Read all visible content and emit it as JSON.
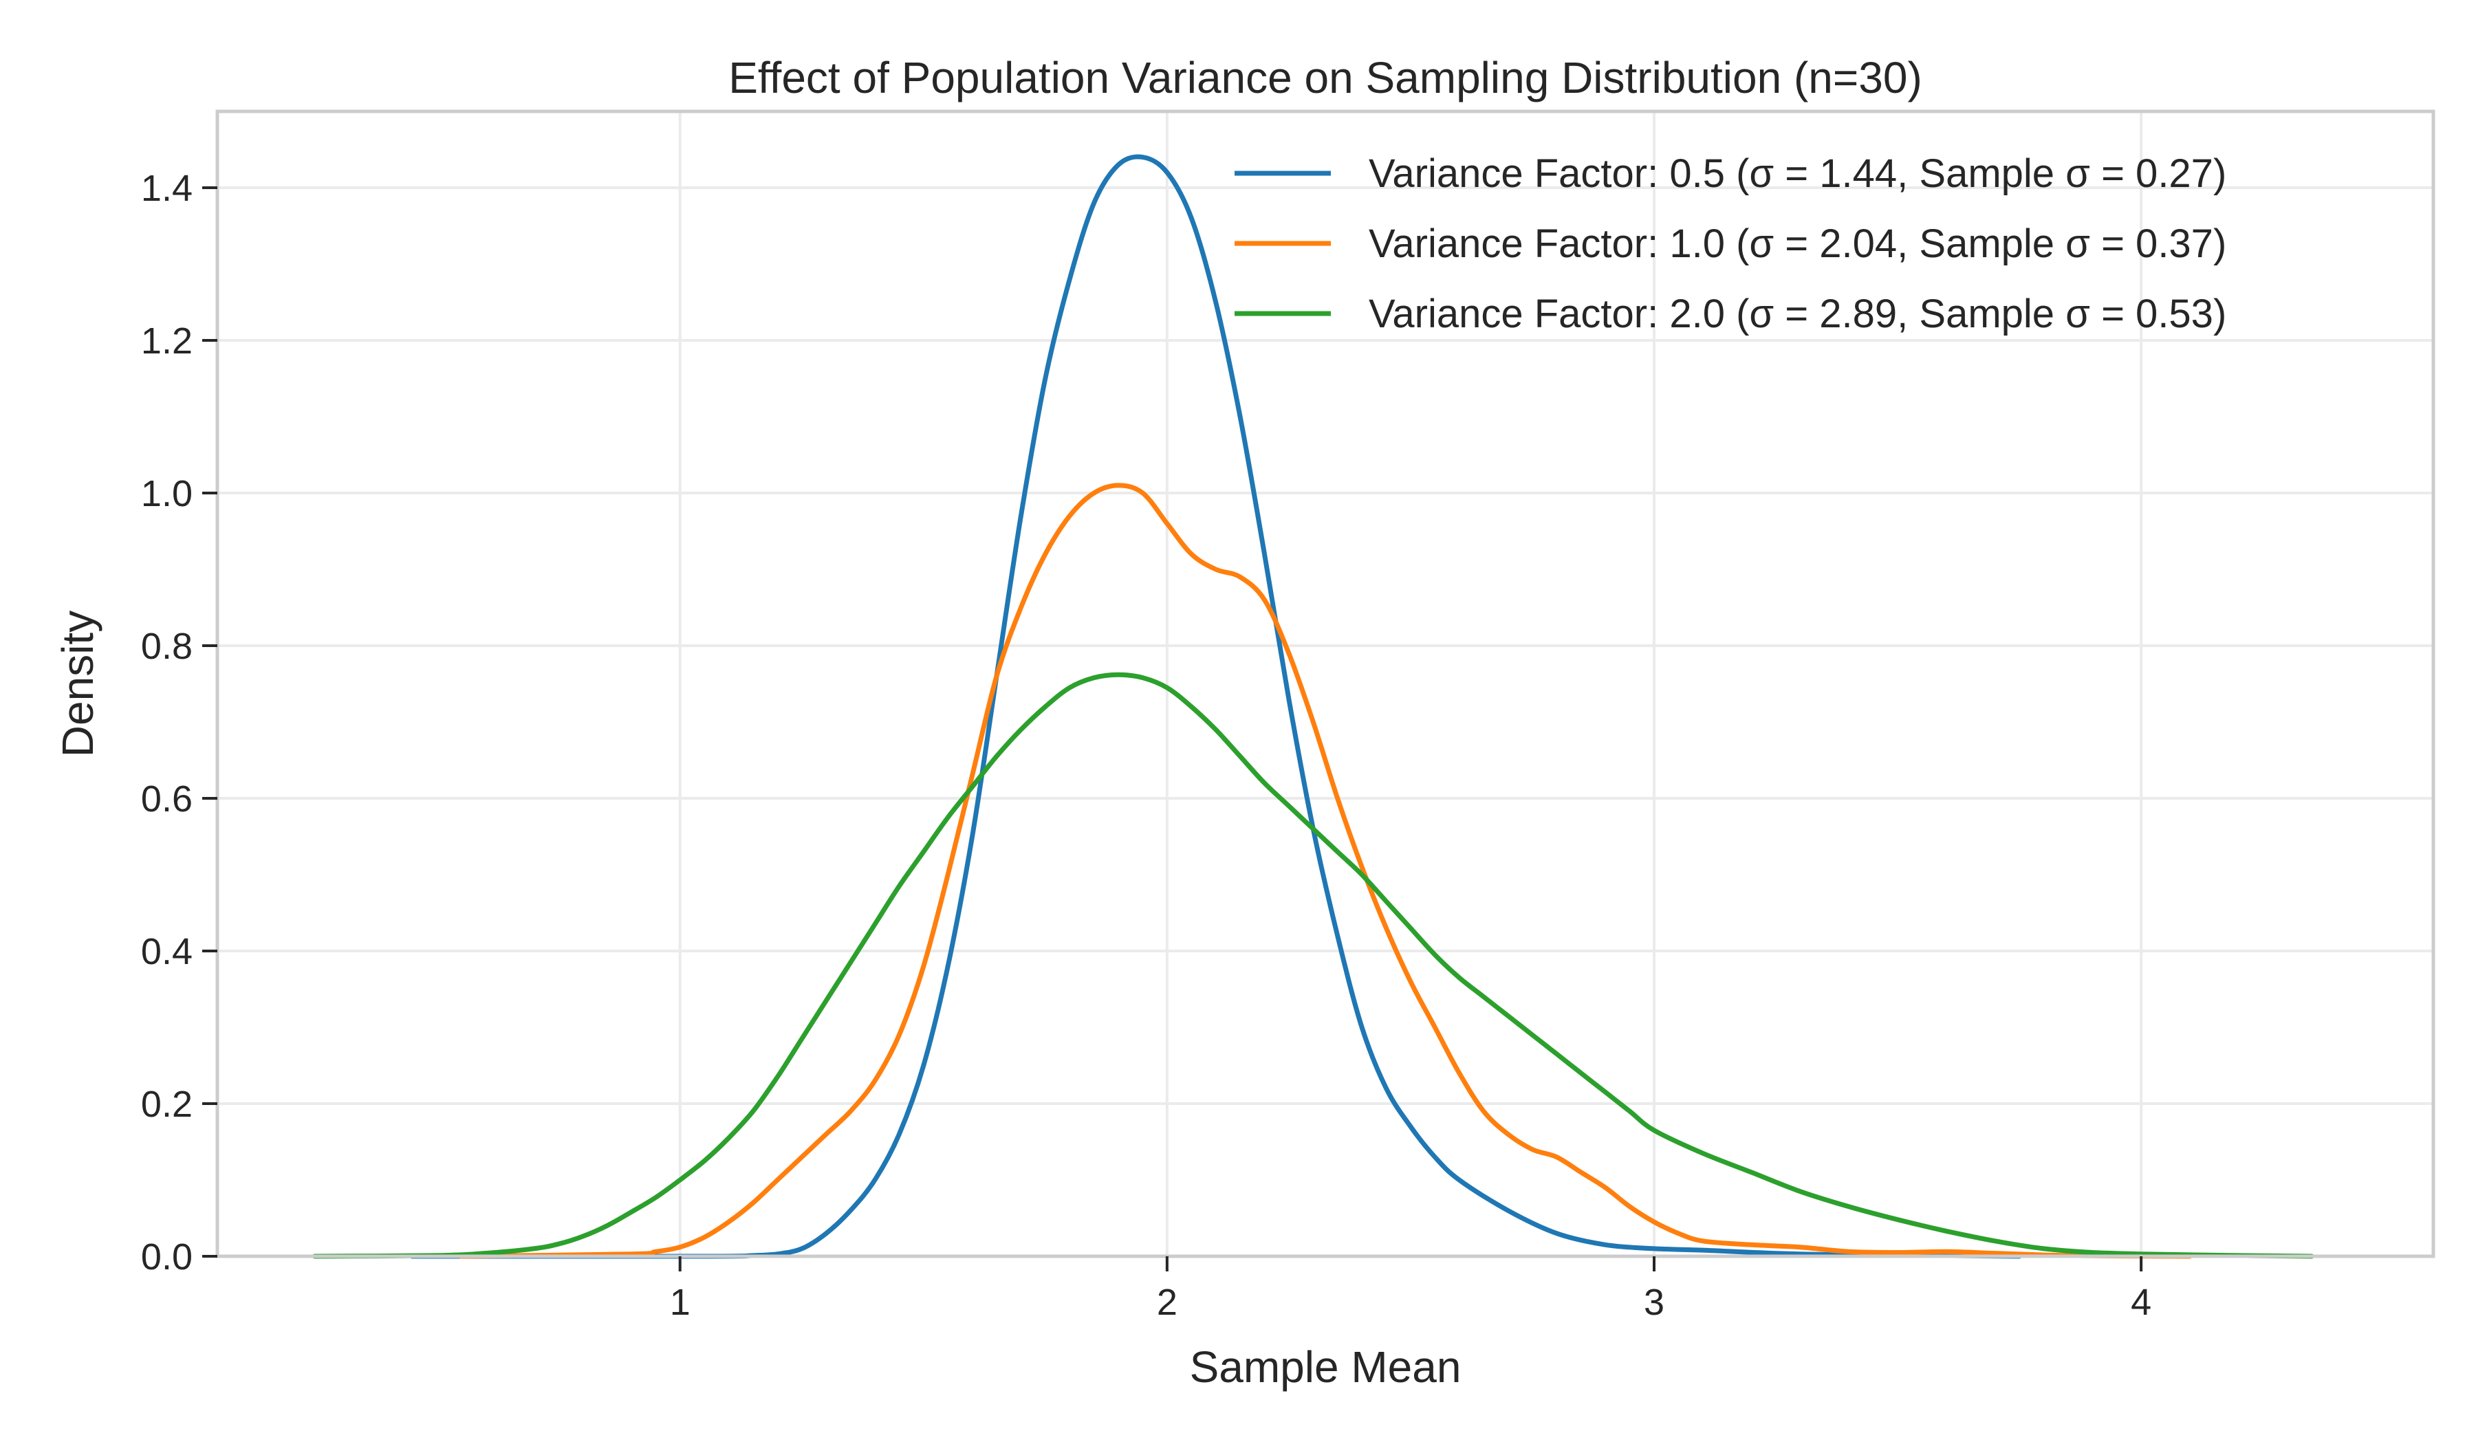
{
  "chart_data": {
    "type": "line",
    "title": "Effect of Population Variance on Sampling Distribution (n=30)",
    "xlabel": "Sample Mean",
    "ylabel": "Density",
    "xlim": [
      0.05,
      4.6
    ],
    "ylim": [
      0.0,
      1.5
    ],
    "xticks": [
      1,
      2,
      3,
      4
    ],
    "xtick_labels": [
      "1",
      "2",
      "3",
      "4"
    ],
    "yticks": [
      0.0,
      0.2,
      0.4,
      0.6,
      0.8,
      1.0,
      1.2,
      1.4
    ],
    "ytick_labels": [
      "0.0",
      "0.2",
      "0.4",
      "0.6",
      "0.8",
      "1.0",
      "1.2",
      "1.4"
    ],
    "grid": true,
    "legend_position": "top-right",
    "series": [
      {
        "name": "Variance Factor: 0.5 (σ = 1.44, Sample σ = 0.27)",
        "color": "#1f77b4",
        "x": [
          0.45,
          1.05,
          1.15,
          1.2,
          1.25,
          1.3,
          1.35,
          1.4,
          1.45,
          1.5,
          1.55,
          1.6,
          1.65,
          1.7,
          1.75,
          1.8,
          1.85,
          1.9,
          1.95,
          2.0,
          2.05,
          2.1,
          2.15,
          2.2,
          2.25,
          2.3,
          2.35,
          2.4,
          2.45,
          2.5,
          2.55,
          2.6,
          2.7,
          2.8,
          2.9,
          3.0,
          3.1,
          3.3,
          3.6,
          3.75
        ],
        "y": [
          0.0,
          0.0,
          0.001,
          0.003,
          0.01,
          0.03,
          0.06,
          0.1,
          0.16,
          0.25,
          0.38,
          0.55,
          0.76,
          0.97,
          1.15,
          1.28,
          1.38,
          1.43,
          1.44,
          1.42,
          1.36,
          1.25,
          1.1,
          0.92,
          0.73,
          0.56,
          0.42,
          0.3,
          0.22,
          0.17,
          0.13,
          0.1,
          0.06,
          0.03,
          0.015,
          0.01,
          0.008,
          0.003,
          0.001,
          0.0
        ]
      },
      {
        "name": "Variance Factor: 1.0 (σ = 2.04, Sample σ = 0.37)",
        "color": "#ff7f0e",
        "x": [
          0.55,
          0.9,
          0.95,
          1.0,
          1.05,
          1.1,
          1.15,
          1.2,
          1.25,
          1.3,
          1.35,
          1.4,
          1.45,
          1.5,
          1.55,
          1.6,
          1.65,
          1.7,
          1.75,
          1.8,
          1.85,
          1.9,
          1.95,
          2.0,
          2.05,
          2.1,
          2.15,
          2.2,
          2.25,
          2.3,
          2.35,
          2.4,
          2.45,
          2.5,
          2.55,
          2.6,
          2.65,
          2.7,
          2.75,
          2.8,
          2.85,
          2.9,
          2.95,
          3.0,
          3.05,
          3.1,
          3.2,
          3.3,
          3.4,
          3.5,
          3.6,
          3.7,
          3.85,
          4.1
        ],
        "y": [
          0.0,
          0.003,
          0.006,
          0.012,
          0.025,
          0.045,
          0.07,
          0.1,
          0.13,
          0.16,
          0.19,
          0.23,
          0.29,
          0.38,
          0.5,
          0.63,
          0.76,
          0.85,
          0.92,
          0.97,
          1.0,
          1.01,
          1.0,
          0.96,
          0.92,
          0.9,
          0.89,
          0.86,
          0.79,
          0.7,
          0.6,
          0.51,
          0.43,
          0.36,
          0.3,
          0.24,
          0.19,
          0.16,
          0.14,
          0.13,
          0.11,
          0.09,
          0.065,
          0.045,
          0.03,
          0.02,
          0.015,
          0.012,
          0.006,
          0.005,
          0.006,
          0.004,
          0.001,
          0.0
        ]
      },
      {
        "name": "Variance Factor: 2.0 (σ = 2.89, Sample σ = 0.53)",
        "color": "#2ca02c",
        "x": [
          0.25,
          0.5,
          0.6,
          0.7,
          0.75,
          0.8,
          0.85,
          0.9,
          0.95,
          1.0,
          1.05,
          1.1,
          1.15,
          1.2,
          1.25,
          1.3,
          1.35,
          1.4,
          1.45,
          1.5,
          1.55,
          1.6,
          1.65,
          1.7,
          1.75,
          1.8,
          1.85,
          1.9,
          1.95,
          2.0,
          2.05,
          2.1,
          2.15,
          2.2,
          2.25,
          2.3,
          2.35,
          2.4,
          2.45,
          2.5,
          2.55,
          2.6,
          2.65,
          2.7,
          2.75,
          2.8,
          2.85,
          2.9,
          2.95,
          3.0,
          3.1,
          3.2,
          3.3,
          3.4,
          3.5,
          3.6,
          3.7,
          3.8,
          3.9,
          4.0,
          4.2,
          4.35
        ],
        "y": [
          0.0,
          0.001,
          0.004,
          0.01,
          0.016,
          0.026,
          0.04,
          0.058,
          0.077,
          0.1,
          0.125,
          0.155,
          0.19,
          0.235,
          0.285,
          0.335,
          0.385,
          0.435,
          0.485,
          0.53,
          0.575,
          0.615,
          0.655,
          0.69,
          0.72,
          0.745,
          0.758,
          0.762,
          0.758,
          0.745,
          0.72,
          0.69,
          0.655,
          0.62,
          0.59,
          0.56,
          0.53,
          0.5,
          0.465,
          0.43,
          0.395,
          0.365,
          0.34,
          0.315,
          0.29,
          0.265,
          0.24,
          0.215,
          0.19,
          0.165,
          0.135,
          0.11,
          0.085,
          0.065,
          0.048,
          0.033,
          0.02,
          0.01,
          0.005,
          0.003,
          0.001,
          0.0
        ]
      }
    ]
  }
}
